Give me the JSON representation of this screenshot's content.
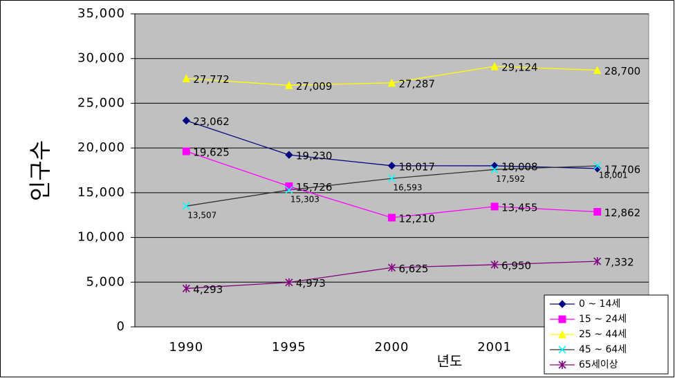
{
  "chart_data": {
    "type": "line",
    "y_label": "인구수",
    "x_label": "년도",
    "categories": [
      "1990",
      "1995",
      "2000",
      "2001",
      null
    ],
    "ylim": [
      0,
      35000
    ],
    "yticks": [
      0,
      {
        "value": 5000,
        "label": "5,000"
      },
      {
        "value": 10000,
        "label": "10,000"
      },
      {
        "value": 15000,
        "label": "15,000"
      },
      {
        "value": 20000,
        "label": "20,000"
      },
      {
        "value": 25000,
        "label": "25,000"
      },
      {
        "value": 30000,
        "label": "30,000"
      },
      {
        "value": 35000,
        "label": "35,000"
      }
    ],
    "grid": true,
    "legend": "bottom-right",
    "series": [
      {
        "name": "0 ~ 14세",
        "color": "#000080",
        "line_color": "#000080",
        "marker": "diamond",
        "values": [
          23062,
          19230,
          18017,
          18008,
          17706
        ],
        "value_labels": [
          "23,062",
          "19,230",
          "18,017",
          "18,008",
          "17,706"
        ]
      },
      {
        "name": "15 ~ 24세",
        "color": "#FF00FF",
        "line_color": "#FF00FF",
        "marker": "square",
        "values": [
          19625,
          15726,
          12210,
          13455,
          12862
        ],
        "value_labels": [
          "19,625",
          "15,726",
          "12,210",
          "13,455",
          "12,862"
        ]
      },
      {
        "name": "25 ~ 44세",
        "color": "#FFFF00",
        "line_color": "#FFFF00",
        "marker": "triangle",
        "values": [
          27772,
          27009,
          27287,
          29124,
          28700
        ],
        "value_labels": [
          "27,772",
          "27,009",
          "27,287",
          "29,124",
          "28,700"
        ]
      },
      {
        "name": "45 ~ 64세",
        "color": "#00FFFF",
        "line_color": "#333333",
        "marker": "x",
        "values": [
          13507,
          15303,
          16593,
          17592,
          18001
        ],
        "value_labels": [
          "13,507",
          "15,303",
          "16,593",
          "17,592",
          "18,001"
        ]
      },
      {
        "name": "65세이상",
        "color": "#800080",
        "line_color": "#800080",
        "marker": "star",
        "values": [
          4293,
          4973,
          6625,
          6950,
          7332
        ],
        "value_labels": [
          "4,293",
          "4,973",
          "6,625",
          "6,950",
          "7,332"
        ]
      }
    ]
  }
}
